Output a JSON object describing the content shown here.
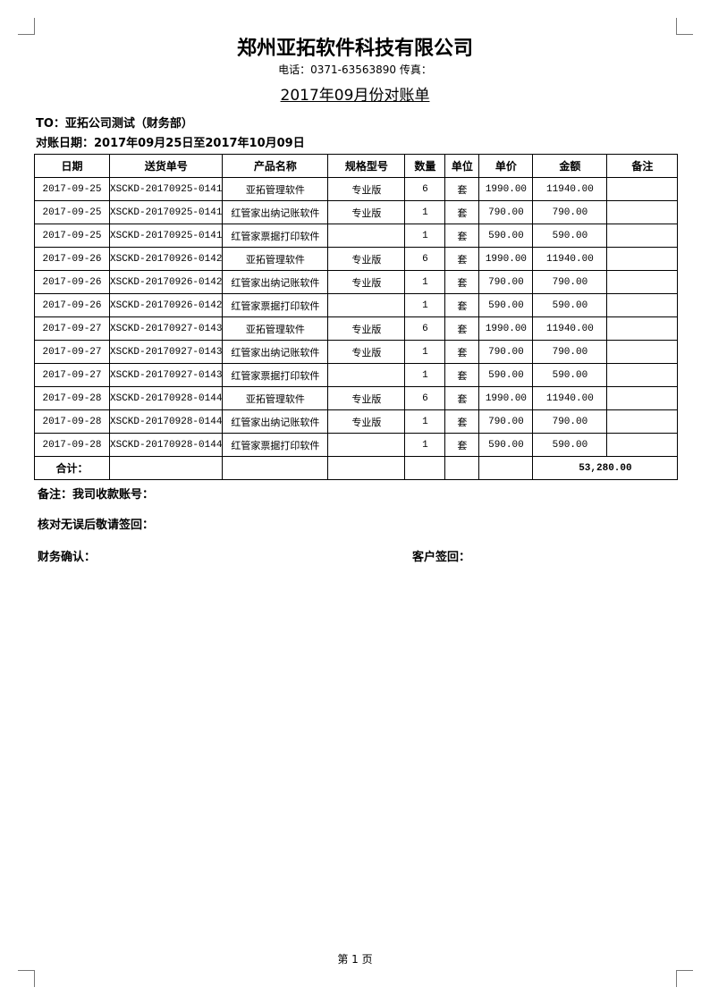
{
  "header": {
    "company": "郑州亚拓软件科技有限公司",
    "contact": "电话：0371-63563890 传真：",
    "title": "2017年09月份对账单"
  },
  "recipient": "TO：亚拓公司测试（财务部）",
  "period": "对账日期：2017年09月25日至2017年10月09日",
  "table": {
    "columns": [
      "日期",
      "送货单号",
      "产品名称",
      "规格型号",
      "数量",
      "单位",
      "单价",
      "金额",
      "备注"
    ],
    "rows": [
      [
        "2017-09-25",
        "XSCKD-20170925-0141",
        "亚拓管理软件",
        "专业版",
        "6",
        "套",
        "1990.00",
        "11940.00"
      ],
      [
        "2017-09-25",
        "XSCKD-20170925-0141",
        "红管家出纳记账软件",
        "专业版",
        "1",
        "套",
        "790.00",
        "790.00"
      ],
      [
        "2017-09-25",
        "XSCKD-20170925-0141",
        "红管家票据打印软件",
        null,
        "1",
        "套",
        "590.00",
        "590.00"
      ],
      [
        "2017-09-26",
        "XSCKD-20170926-0142",
        "亚拓管理软件",
        "专业版",
        "6",
        "套",
        "1990.00",
        "11940.00"
      ],
      [
        "2017-09-26",
        "XSCKD-20170926-0142",
        "红管家出纳记账软件",
        "专业版",
        "1",
        "套",
        "790.00",
        "790.00"
      ],
      [
        "2017-09-26",
        "XSCKD-20170926-0142",
        "红管家票据打印软件",
        null,
        "1",
        "套",
        "590.00",
        "590.00"
      ],
      [
        "2017-09-27",
        "XSCKD-20170927-0143",
        "亚拓管理软件",
        "专业版",
        "6",
        "套",
        "1990.00",
        "11940.00"
      ],
      [
        "2017-09-27",
        "XSCKD-20170927-0143",
        "红管家出纳记账软件",
        "专业版",
        "1",
        "套",
        "790.00",
        "790.00"
      ],
      [
        "2017-09-27",
        "XSCKD-20170927-0143",
        "红管家票据打印软件",
        null,
        "1",
        "套",
        "590.00",
        "590.00"
      ],
      [
        "2017-09-28",
        "XSCKD-20170928-0144",
        "亚拓管理软件",
        "专业版",
        "6",
        "套",
        "1990.00",
        "11940.00"
      ],
      [
        "2017-09-28",
        "XSCKD-20170928-0144",
        "红管家出纳记账软件",
        "专业版",
        "1",
        "套",
        "790.00",
        "790.00"
      ],
      [
        "2017-09-28",
        "XSCKD-20170928-0144",
        "红管家票据打印软件",
        null,
        "1",
        "套",
        "590.00",
        "590.00"
      ]
    ],
    "total": {
      "label": "合计：",
      "amount": "53,280.00"
    }
  },
  "notes": [
    "备注：我司收款账号：",
    "核对无误后敬请签回："
  ],
  "signatures": [
    "财务确认：",
    "客户签回："
  ],
  "footer": {
    "page": "第 1 页"
  }
}
